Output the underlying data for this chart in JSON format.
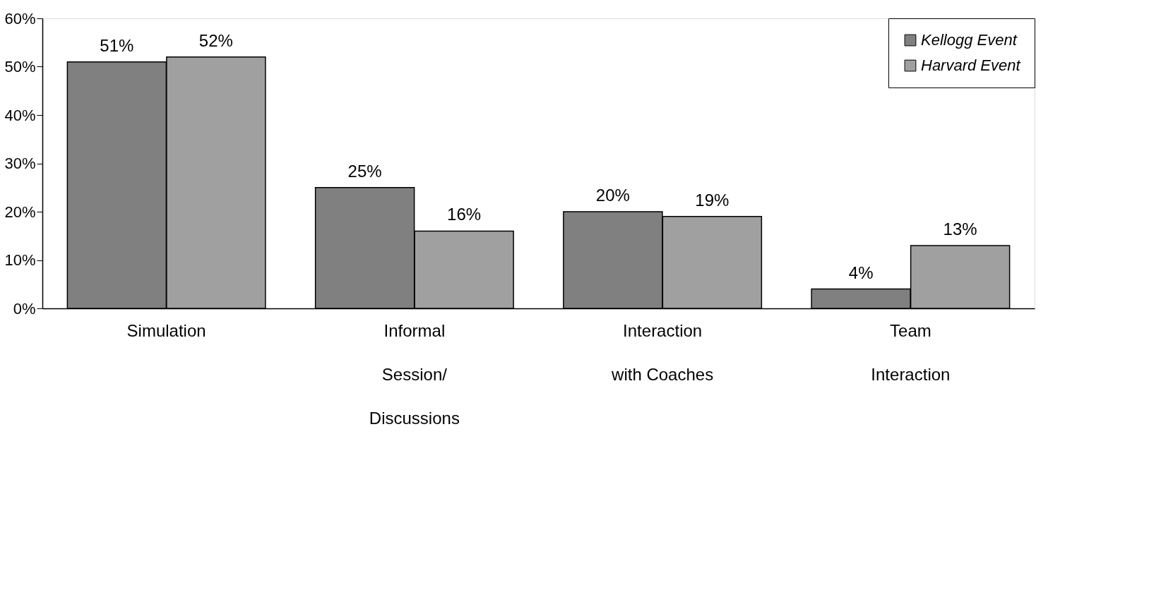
{
  "chart_data": {
    "type": "bar",
    "categories": [
      "Simulation",
      "Informal\nSession/\nDiscussions",
      "Interaction\nwith Coaches",
      "Team\nInteraction"
    ],
    "series": [
      {
        "name": "Kellogg Event",
        "color": "#808080",
        "values": [
          51,
          25,
          20,
          4
        ],
        "value_labels": [
          "51%",
          "25%",
          "20%",
          "4%"
        ]
      },
      {
        "name": "Harvard Event",
        "color": "#a0a0a0",
        "values": [
          52,
          16,
          19,
          13
        ],
        "value_labels": [
          "52%",
          "16%",
          "19%",
          "13%"
        ]
      }
    ],
    "ylim": [
      0,
      60
    ],
    "yticks": [
      {
        "value": 0,
        "label": "0%"
      },
      {
        "value": 10,
        "label": "10%"
      },
      {
        "value": 20,
        "label": "20%"
      },
      {
        "value": 30,
        "label": "30%"
      },
      {
        "value": 40,
        "label": "40%"
      },
      {
        "value": 50,
        "label": "50%"
      },
      {
        "value": 60,
        "label": "60%"
      }
    ],
    "grid": false,
    "legend": "top right"
  }
}
